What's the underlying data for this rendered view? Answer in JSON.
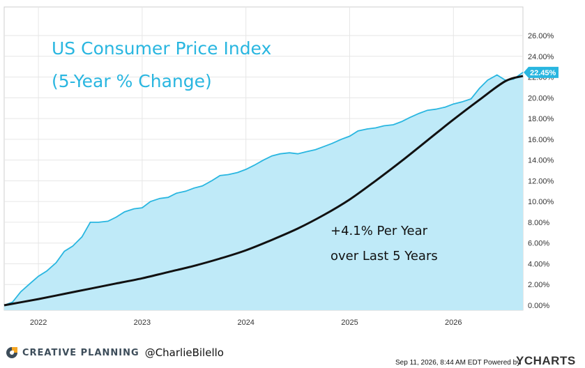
{
  "chart_data": {
    "type": "area",
    "title": "US Consumer Price Index",
    "subtitle": "(5-Year % Change)",
    "x_tick_labels": [
      "2022",
      "2023",
      "2024",
      "2025",
      "2026"
    ],
    "y_tick_labels": [
      "0.00%",
      "2.00%",
      "4.00%",
      "6.00%",
      "8.00%",
      "10.00%",
      "12.00%",
      "14.00%",
      "16.00%",
      "18.00%",
      "20.00%",
      "22.00%",
      "24.00%",
      "26.00%"
    ],
    "ylim": [
      0,
      26
    ],
    "xlim": [
      2021.67,
      2026.67
    ],
    "grid": true,
    "last_value_label": "22.45%",
    "series": [
      {
        "type": "area",
        "color": "#29b6e0",
        "x": [
          2021.67,
          2021.75,
          2021.83,
          2021.92,
          2022.0,
          2022.08,
          2022.17,
          2022.25,
          2022.33,
          2022.42,
          2022.5,
          2022.58,
          2022.67,
          2022.75,
          2022.83,
          2022.92,
          2023.0,
          2023.08,
          2023.17,
          2023.25,
          2023.33,
          2023.42,
          2023.5,
          2023.58,
          2023.67,
          2023.75,
          2023.83,
          2023.92,
          2024.0,
          2024.08,
          2024.17,
          2024.25,
          2024.33,
          2024.42,
          2024.5,
          2024.58,
          2024.67,
          2024.75,
          2024.83,
          2024.92,
          2025.0,
          2025.08,
          2025.17,
          2025.25,
          2025.33,
          2025.42,
          2025.5,
          2025.58,
          2025.67,
          2025.75,
          2025.83,
          2025.92,
          2026.0,
          2026.08,
          2026.17,
          2026.25,
          2026.33,
          2026.42,
          2026.5,
          2026.58,
          2026.67
        ],
        "y": [
          0.0,
          0.3,
          1.3,
          2.1,
          2.8,
          3.3,
          4.1,
          5.2,
          5.7,
          6.6,
          8.0,
          8.0,
          8.1,
          8.5,
          9.0,
          9.3,
          9.4,
          10.0,
          10.3,
          10.4,
          10.8,
          11.0,
          11.3,
          11.5,
          12.0,
          12.5,
          12.6,
          12.8,
          13.1,
          13.5,
          14.0,
          14.4,
          14.6,
          14.7,
          14.6,
          14.8,
          15.0,
          15.3,
          15.6,
          16.0,
          16.3,
          16.8,
          17.0,
          17.1,
          17.3,
          17.4,
          17.7,
          18.1,
          18.5,
          18.8,
          18.9,
          19.1,
          19.4,
          19.6,
          19.9,
          20.9,
          21.7,
          22.2,
          21.7,
          21.8,
          22.45
        ]
      },
      {
        "type": "line",
        "color": "#111111",
        "x": [
          2021.67,
          2022.0,
          2022.25,
          2022.5,
          2022.75,
          2023.0,
          2023.25,
          2023.5,
          2023.75,
          2024.0,
          2024.25,
          2024.5,
          2024.75,
          2025.0,
          2025.25,
          2025.5,
          2025.75,
          2026.0,
          2026.25,
          2026.5,
          2026.67
        ],
        "y": [
          0.0,
          0.6,
          1.1,
          1.6,
          2.1,
          2.6,
          3.2,
          3.8,
          4.5,
          5.3,
          6.3,
          7.4,
          8.7,
          10.2,
          12.0,
          13.9,
          15.9,
          17.9,
          19.8,
          21.6,
          22.1
        ]
      }
    ],
    "annotation_line1": "+4.1% Per Year",
    "annotation_line2": "over Last 5 Years"
  },
  "colors": {
    "area_fill": "#bfeaf8",
    "area_line": "#29b6e0",
    "trend_line": "#111111",
    "title_color": "#29b6e0",
    "grid": "#e6e6e6",
    "badge": "#29b6e0"
  },
  "footer": {
    "brand": "CREATIVE PLANNING",
    "handle": "@CharlieBilello",
    "timestamp": "Sep 11, 2026, 8:44 AM EDT Powered by",
    "powered_logo": "YCHARTS",
    "logo_icon": "creative-planning-logo-icon"
  }
}
